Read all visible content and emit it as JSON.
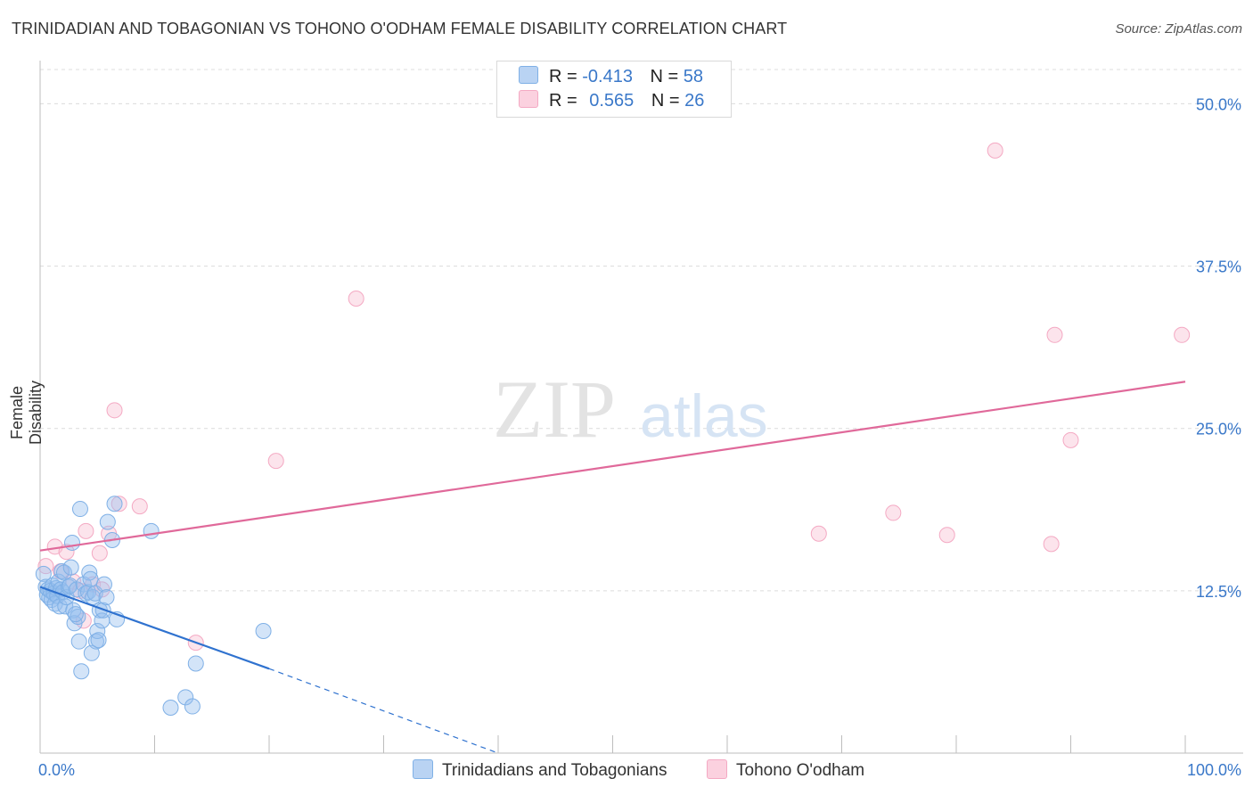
{
  "header": {
    "title": "TRINIDADIAN AND TOBAGONIAN VS TOHONO O'ODHAM FEMALE DISABILITY CORRELATION CHART",
    "source": "Source: ZipAtlas.com"
  },
  "watermark": {
    "zip": "ZIP",
    "atlas": "atlas"
  },
  "legend": {
    "rows": [
      {
        "r_label": "R =",
        "r_value": "-0.413",
        "n_label": "N =",
        "n_value": "58"
      },
      {
        "r_label": "R =",
        "r_value": "0.565",
        "n_label": "N =",
        "n_value": "26"
      }
    ]
  },
  "chart_data": {
    "type": "scatter",
    "title": "TRINIDADIAN AND TOBAGONIAN VS TOHONO O'ODHAM FEMALE DISABILITY CORRELATION CHART",
    "xlabel": "",
    "ylabel": "Female Disability",
    "xlim": [
      0,
      100
    ],
    "ylim": [
      0,
      52.5
    ],
    "x_tick_labels": [
      "0.0%",
      "100.0%"
    ],
    "y_ticks": [
      12.5,
      25.0,
      37.5,
      50.0
    ],
    "y_tick_labels": [
      "12.5%",
      "25.0%",
      "37.5%",
      "50.0%"
    ],
    "grid": true,
    "legend_position": "bottom",
    "series": [
      {
        "name": "Trinidadians and Tobagonians",
        "color": "#7fb0e6",
        "line_color": "#2f72cf",
        "r": -0.413,
        "n": 58,
        "trend": {
          "x0": 0,
          "y0": 12.8,
          "x1": 20,
          "y1": 6.5,
          "dash_to_x": 40,
          "dash_to_y": 0.0
        },
        "points": [
          [
            0.3,
            13.8
          ],
          [
            0.5,
            12.8
          ],
          [
            0.6,
            12.2
          ],
          [
            0.7,
            12.6
          ],
          [
            0.8,
            12.0
          ],
          [
            0.9,
            12.5
          ],
          [
            1.0,
            11.8
          ],
          [
            1.1,
            12.9
          ],
          [
            1.2,
            12.3
          ],
          [
            1.3,
            11.5
          ],
          [
            1.4,
            12.7
          ],
          [
            1.5,
            12.1
          ],
          [
            1.6,
            13.2
          ],
          [
            1.7,
            11.3
          ],
          [
            1.8,
            12.6
          ],
          [
            1.9,
            14.0
          ],
          [
            2.0,
            12.4
          ],
          [
            2.1,
            13.9
          ],
          [
            2.2,
            11.3
          ],
          [
            2.3,
            12.0
          ],
          [
            2.5,
            12.8
          ],
          [
            2.6,
            12.9
          ],
          [
            2.7,
            14.3
          ],
          [
            2.8,
            16.2
          ],
          [
            2.9,
            11.0
          ],
          [
            3.0,
            10.0
          ],
          [
            3.2,
            12.6
          ],
          [
            3.3,
            10.5
          ],
          [
            3.4,
            8.6
          ],
          [
            3.5,
            18.8
          ],
          [
            3.6,
            6.3
          ],
          [
            3.8,
            13.0
          ],
          [
            4.0,
            12.3
          ],
          [
            4.2,
            12.4
          ],
          [
            4.3,
            13.9
          ],
          [
            4.4,
            13.4
          ],
          [
            4.5,
            7.7
          ],
          [
            4.6,
            12.0
          ],
          [
            4.8,
            12.3
          ],
          [
            4.9,
            8.6
          ],
          [
            5.0,
            9.4
          ],
          [
            5.1,
            8.7
          ],
          [
            5.2,
            11.0
          ],
          [
            5.4,
            10.2
          ],
          [
            5.5,
            11.0
          ],
          [
            5.6,
            13.0
          ],
          [
            5.8,
            12.0
          ],
          [
            5.9,
            17.8
          ],
          [
            6.3,
            16.4
          ],
          [
            6.5,
            19.2
          ],
          [
            6.7,
            10.3
          ],
          [
            9.7,
            17.1
          ],
          [
            11.4,
            3.5
          ],
          [
            12.7,
            4.3
          ],
          [
            13.3,
            3.6
          ],
          [
            13.6,
            6.9
          ],
          [
            19.5,
            9.4
          ],
          [
            3.1,
            10.7
          ]
        ]
      },
      {
        "name": "Tohono O'odham",
        "color": "#f4a9c3",
        "line_color": "#e0699a",
        "r": 0.565,
        "n": 26,
        "trend": {
          "x0": 0,
          "y0": 15.6,
          "x1": 100,
          "y1": 28.6
        },
        "points": [
          [
            0.5,
            14.4
          ],
          [
            1.3,
            15.9
          ],
          [
            1.8,
            14.0
          ],
          [
            2.3,
            15.5
          ],
          [
            2.9,
            13.2
          ],
          [
            3.5,
            12.5
          ],
          [
            3.8,
            10.2
          ],
          [
            4.0,
            17.1
          ],
          [
            4.6,
            13.0
          ],
          [
            5.2,
            15.4
          ],
          [
            5.4,
            12.6
          ],
          [
            6.0,
            16.9
          ],
          [
            6.5,
            26.4
          ],
          [
            6.9,
            19.2
          ],
          [
            8.7,
            19.0
          ],
          [
            13.6,
            8.5
          ],
          [
            20.6,
            22.5
          ],
          [
            27.6,
            35.0
          ],
          [
            68.0,
            16.9
          ],
          [
            74.5,
            18.5
          ],
          [
            79.2,
            16.8
          ],
          [
            83.4,
            46.4
          ],
          [
            88.3,
            16.1
          ],
          [
            88.6,
            32.2
          ],
          [
            90.0,
            24.1
          ],
          [
            99.7,
            32.2
          ]
        ]
      }
    ]
  }
}
